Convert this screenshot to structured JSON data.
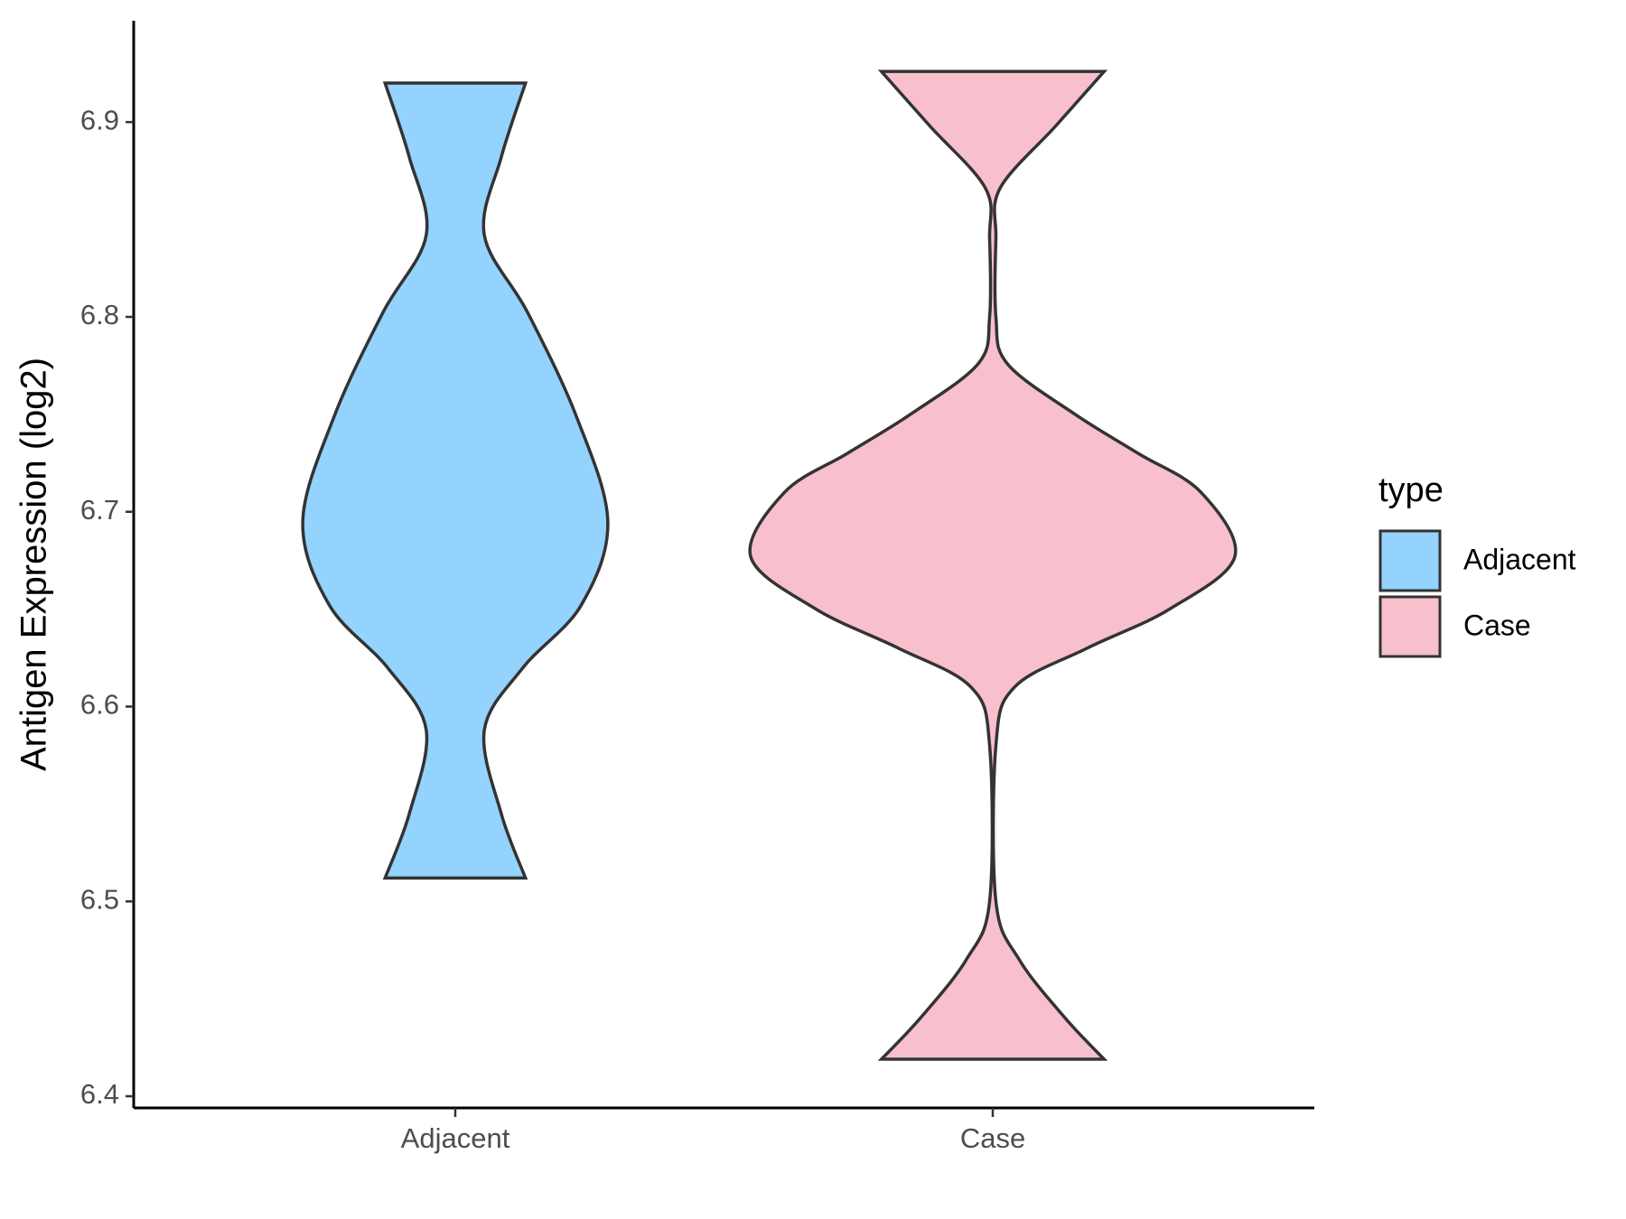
{
  "chart_data": {
    "type": "violin",
    "y_label": "Antigen Expression (log2)",
    "categories": [
      "Adjacent",
      "Case"
    ],
    "legend_title": "type",
    "legend_position": "right",
    "ylim": [
      6.394,
      6.952
    ],
    "yticks": [
      6.4,
      6.5,
      6.6,
      6.7,
      6.8,
      6.9
    ],
    "series": [
      {
        "name": "Adjacent",
        "color": "#93d3fd",
        "y": [
          6.512,
          6.545,
          6.588,
          6.62,
          6.652,
          6.695,
          6.749,
          6.802,
          6.842,
          6.882,
          6.92
        ],
        "density": [
          0.29,
          0.19,
          0.12,
          0.28,
          0.52,
          0.63,
          0.5,
          0.3,
          0.12,
          0.19,
          0.29
        ]
      },
      {
        "name": "Case",
        "color": "#f7c0cc",
        "y": [
          6.419,
          6.44,
          6.47,
          6.5,
          6.58,
          6.61,
          6.63,
          6.65,
          6.677,
          6.71,
          6.73,
          6.75,
          6.776,
          6.8,
          6.84,
          6.866,
          6.898,
          6.926
        ],
        "density": [
          0.46,
          0.3,
          0.11,
          0.013,
          0.013,
          0.09,
          0.39,
          0.73,
          1,
          0.86,
          0.6,
          0.34,
          0.06,
          0.013,
          0.013,
          0.03,
          0.26,
          0.46
        ]
      }
    ]
  }
}
